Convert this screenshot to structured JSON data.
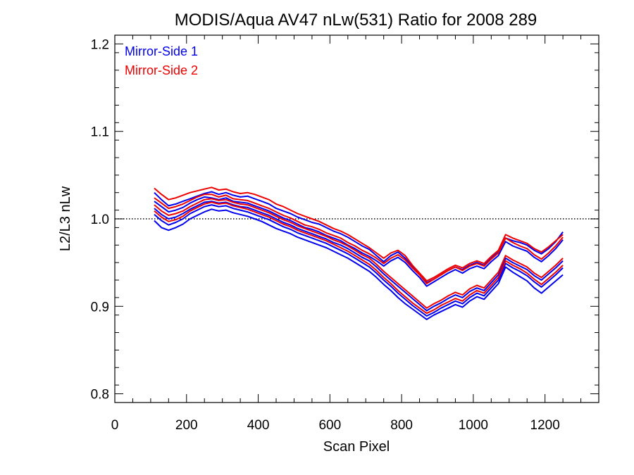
{
  "chart_data": {
    "type": "line",
    "title": "MODIS/Aqua AV47 nLw(531) Ratio for 2008 289",
    "xlabel": "Scan Pixel",
    "ylabel": "L2/L3 nLw",
    "xlim": [
      0,
      1350
    ],
    "ylim": [
      0.79,
      1.21
    ],
    "xticks": [
      0,
      200,
      400,
      600,
      800,
      1000,
      1200
    ],
    "xtick_labels": [
      "0",
      "200",
      "400",
      "600",
      "800",
      "1000",
      "1200"
    ],
    "yticks": [
      0.8,
      0.9,
      1.0,
      1.1,
      1.2
    ],
    "ytick_labels": [
      "0.8",
      "0.9",
      "1.0",
      "1.1",
      "1.2"
    ],
    "reference_line": 1.0,
    "legend_position": "top-left",
    "legend": [
      {
        "label": "Mirror-Side 1",
        "color": "#0000ee"
      },
      {
        "label": "Mirror-Side 2",
        "color": "#ee0000"
      }
    ],
    "x": [
      110,
      130,
      150,
      170,
      190,
      210,
      230,
      250,
      270,
      290,
      310,
      330,
      350,
      370,
      390,
      410,
      430,
      450,
      470,
      490,
      510,
      530,
      550,
      570,
      590,
      610,
      630,
      650,
      670,
      690,
      710,
      730,
      750,
      770,
      790,
      810,
      830,
      850,
      870,
      890,
      910,
      930,
      950,
      970,
      990,
      1010,
      1030,
      1050,
      1070,
      1090,
      1110,
      1130,
      1150,
      1170,
      1190,
      1210,
      1230,
      1250
    ],
    "series": [
      {
        "group": "Mirror-Side 1",
        "color": "#0000ee",
        "values": [
          1.03,
          1.022,
          1.015,
          1.017,
          1.02,
          1.023,
          1.026,
          1.029,
          1.031,
          1.028,
          1.03,
          1.027,
          1.025,
          1.026,
          1.023,
          1.02,
          1.017,
          1.012,
          1.009,
          1.006,
          1.002,
          0.999,
          0.996,
          0.994,
          0.99,
          0.986,
          0.983,
          0.979,
          0.974,
          0.969,
          0.965,
          0.958,
          0.951,
          0.958,
          0.962,
          0.955,
          0.945,
          0.937,
          0.927,
          0.931,
          0.936,
          0.941,
          0.945,
          0.942,
          0.947,
          0.95,
          0.947,
          0.955,
          0.962,
          0.978,
          0.975,
          0.973,
          0.97,
          0.964,
          0.96,
          0.966,
          0.974,
          0.985
        ]
      },
      {
        "group": "Mirror-Side 1",
        "color": "#0000ee",
        "values": [
          1.02,
          1.014,
          1.008,
          1.01,
          1.013,
          1.018,
          1.022,
          1.025,
          1.024,
          1.022,
          1.024,
          1.02,
          1.019,
          1.018,
          1.015,
          1.012,
          1.009,
          1.005,
          1.001,
          0.998,
          0.994,
          0.99,
          0.988,
          0.985,
          0.981,
          0.978,
          0.975,
          0.97,
          0.966,
          0.961,
          0.957,
          0.952,
          0.946,
          0.952,
          0.956,
          0.95,
          0.941,
          0.933,
          0.923,
          0.928,
          0.933,
          0.938,
          0.942,
          0.938,
          0.943,
          0.946,
          0.943,
          0.951,
          0.958,
          0.974,
          0.969,
          0.966,
          0.963,
          0.956,
          0.951,
          0.958,
          0.966,
          0.976
        ]
      },
      {
        "group": "Mirror-Side 1",
        "color": "#0000ee",
        "values": [
          1.012,
          1.005,
          1.0,
          1.002,
          1.006,
          1.011,
          1.015,
          1.019,
          1.02,
          1.018,
          1.019,
          1.016,
          1.014,
          1.013,
          1.01,
          1.007,
          1.004,
          1.0,
          0.996,
          0.993,
          0.989,
          0.986,
          0.983,
          0.98,
          0.977,
          0.973,
          0.97,
          0.966,
          0.961,
          0.956,
          0.952,
          0.945,
          0.937,
          0.93,
          0.923,
          0.916,
          0.909,
          0.902,
          0.895,
          0.9,
          0.904,
          0.909,
          0.913,
          0.91,
          0.917,
          0.921,
          0.918,
          0.927,
          0.936,
          0.955,
          0.95,
          0.946,
          0.942,
          0.935,
          0.93,
          0.937,
          0.944,
          0.952
        ]
      },
      {
        "group": "Mirror-Side 1",
        "color": "#0000ee",
        "values": [
          1.005,
          0.998,
          0.993,
          0.996,
          1.0,
          1.006,
          1.01,
          1.014,
          1.016,
          1.014,
          1.015,
          1.012,
          1.01,
          1.008,
          1.005,
          1.002,
          0.999,
          0.995,
          0.991,
          0.988,
          0.984,
          0.981,
          0.978,
          0.975,
          0.972,
          0.968,
          0.964,
          0.96,
          0.955,
          0.95,
          0.945,
          0.938,
          0.93,
          0.923,
          0.915,
          0.908,
          0.901,
          0.895,
          0.889,
          0.893,
          0.898,
          0.902,
          0.906,
          0.903,
          0.91,
          0.915,
          0.912,
          0.921,
          0.93,
          0.949,
          0.944,
          0.94,
          0.935,
          0.928,
          0.922,
          0.929,
          0.936,
          0.944
        ]
      },
      {
        "group": "Mirror-Side 1",
        "color": "#0000ee",
        "values": [
          0.998,
          0.99,
          0.987,
          0.99,
          0.994,
          1.0,
          1.004,
          1.008,
          1.011,
          1.009,
          1.01,
          1.007,
          1.005,
          1.003,
          1.0,
          0.997,
          0.993,
          0.989,
          0.986,
          0.983,
          0.979,
          0.976,
          0.973,
          0.97,
          0.967,
          0.963,
          0.959,
          0.955,
          0.95,
          0.945,
          0.94,
          0.933,
          0.925,
          0.918,
          0.91,
          0.903,
          0.897,
          0.891,
          0.885,
          0.89,
          0.894,
          0.898,
          0.902,
          0.899,
          0.906,
          0.911,
          0.908,
          0.917,
          0.926,
          0.945,
          0.939,
          0.934,
          0.929,
          0.921,
          0.915,
          0.922,
          0.929,
          0.936
        ]
      },
      {
        "group": "Mirror-Side 2",
        "color": "#ee0000",
        "values": [
          1.035,
          1.028,
          1.022,
          1.024,
          1.027,
          1.03,
          1.032,
          1.034,
          1.036,
          1.033,
          1.034,
          1.031,
          1.029,
          1.03,
          1.028,
          1.025,
          1.022,
          1.017,
          1.014,
          1.01,
          1.006,
          1.003,
          1.0,
          0.997,
          0.993,
          0.989,
          0.986,
          0.982,
          0.977,
          0.972,
          0.967,
          0.961,
          0.955,
          0.961,
          0.964,
          0.958,
          0.947,
          0.938,
          0.929,
          0.933,
          0.938,
          0.943,
          0.947,
          0.944,
          0.949,
          0.952,
          0.949,
          0.957,
          0.964,
          0.982,
          0.978,
          0.975,
          0.972,
          0.966,
          0.962,
          0.968,
          0.975,
          0.982
        ]
      },
      {
        "group": "Mirror-Side 2",
        "color": "#ee0000",
        "values": [
          1.024,
          1.018,
          1.012,
          1.014,
          1.017,
          1.021,
          1.025,
          1.028,
          1.028,
          1.025,
          1.027,
          1.023,
          1.022,
          1.021,
          1.018,
          1.015,
          1.012,
          1.008,
          1.004,
          1.001,
          0.997,
          0.993,
          0.991,
          0.988,
          0.984,
          0.981,
          0.978,
          0.973,
          0.969,
          0.964,
          0.96,
          0.955,
          0.949,
          0.955,
          0.959,
          0.953,
          0.944,
          0.936,
          0.926,
          0.931,
          0.936,
          0.941,
          0.945,
          0.941,
          0.946,
          0.949,
          0.946,
          0.954,
          0.961,
          0.978,
          0.973,
          0.969,
          0.966,
          0.959,
          0.954,
          0.961,
          0.969,
          0.979
        ]
      },
      {
        "group": "Mirror-Side 2",
        "color": "#ee0000",
        "values": [
          1.016,
          1.009,
          1.004,
          1.006,
          1.009,
          1.014,
          1.018,
          1.022,
          1.023,
          1.021,
          1.022,
          1.019,
          1.017,
          1.016,
          1.013,
          1.01,
          1.007,
          1.003,
          0.999,
          0.996,
          0.992,
          0.989,
          0.986,
          0.983,
          0.98,
          0.976,
          0.973,
          0.969,
          0.964,
          0.959,
          0.955,
          0.948,
          0.94,
          0.933,
          0.926,
          0.919,
          0.912,
          0.905,
          0.898,
          0.903,
          0.907,
          0.912,
          0.916,
          0.913,
          0.92,
          0.924,
          0.921,
          0.93,
          0.939,
          0.958,
          0.953,
          0.949,
          0.945,
          0.938,
          0.933,
          0.94,
          0.947,
          0.955
        ]
      },
      {
        "group": "Mirror-Side 2",
        "color": "#ee0000",
        "values": [
          1.009,
          1.002,
          0.997,
          0.999,
          1.003,
          1.009,
          1.013,
          1.017,
          1.019,
          1.017,
          1.018,
          1.015,
          1.013,
          1.011,
          1.008,
          1.005,
          1.002,
          0.998,
          0.994,
          0.991,
          0.987,
          0.984,
          0.981,
          0.978,
          0.975,
          0.971,
          0.967,
          0.963,
          0.958,
          0.953,
          0.948,
          0.941,
          0.933,
          0.926,
          0.918,
          0.911,
          0.904,
          0.898,
          0.892,
          0.896,
          0.901,
          0.905,
          0.909,
          0.906,
          0.913,
          0.918,
          0.915,
          0.924,
          0.933,
          0.952,
          0.947,
          0.943,
          0.938,
          0.931,
          0.925,
          0.932,
          0.939,
          0.947
        ]
      }
    ]
  }
}
